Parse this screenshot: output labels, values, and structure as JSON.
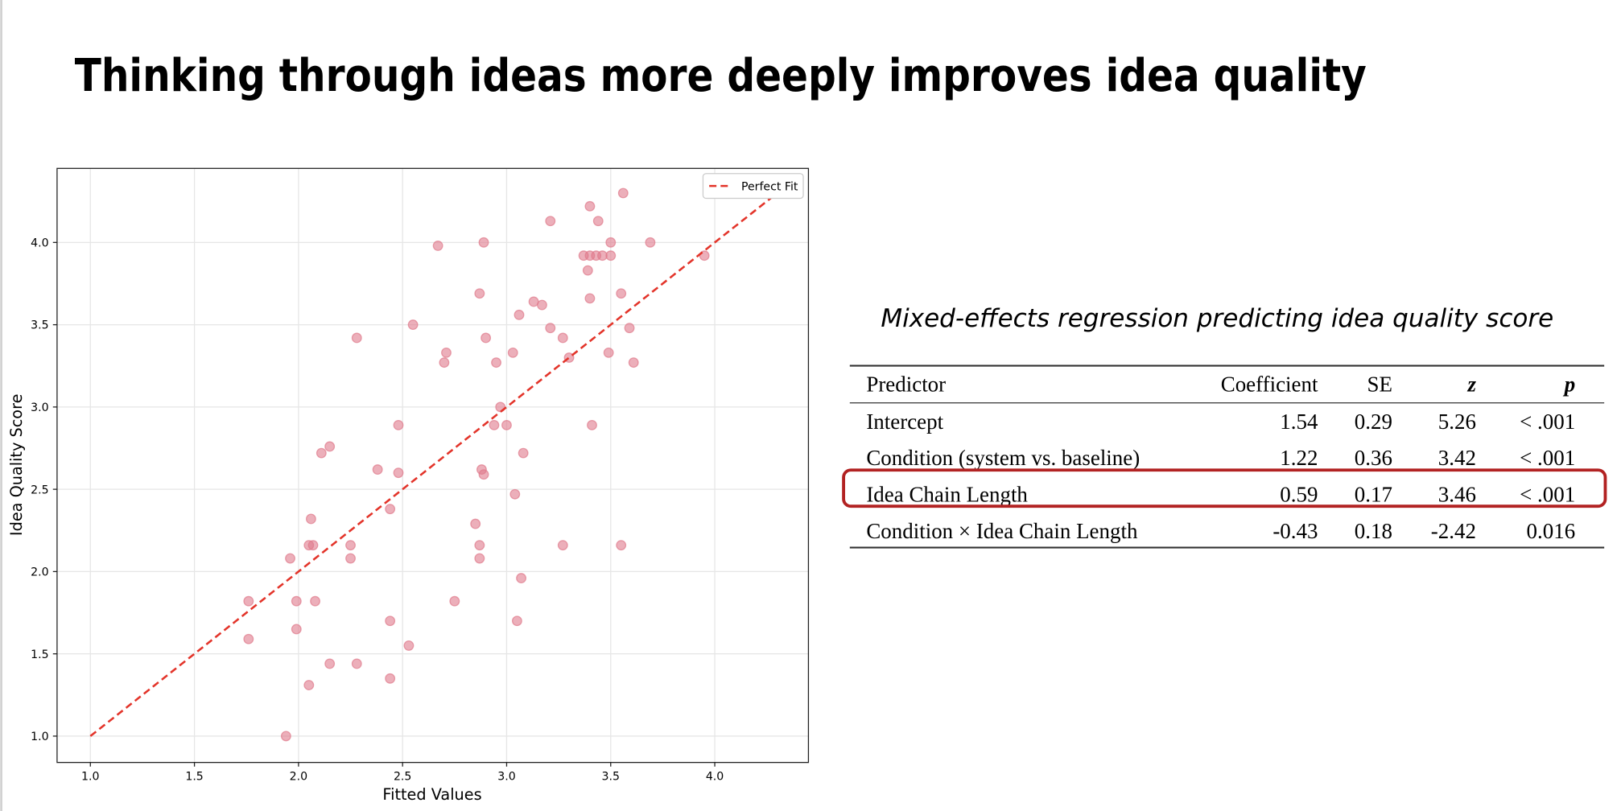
{
  "title": "Thinking through ideas more deeply improves idea quality",
  "chart_data": {
    "type": "scatter",
    "xlabel": "Fitted Values",
    "ylabel": "Idea Quality Score",
    "xlim": [
      0.84,
      4.45
    ],
    "ylim": [
      0.84,
      4.45
    ],
    "xticks": [
      {
        "value": 1,
        "label": "1.0"
      },
      1.5,
      {
        "value": 2,
        "label": "2.0"
      },
      2.5,
      {
        "value": 3,
        "label": "3.0"
      },
      3.5,
      {
        "value": 4,
        "label": "4.0"
      }
    ],
    "yticks": [
      {
        "value": 1,
        "label": "1.0"
      },
      1.5,
      {
        "value": 2,
        "label": "2.0"
      },
      2.5,
      {
        "value": 3,
        "label": "3.0"
      },
      3.5,
      {
        "value": 4,
        "label": "4.0"
      }
    ],
    "grid": true,
    "legend": "upper right",
    "series": [
      {
        "type": "scatter",
        "color": "#e07a8c",
        "x": [
          3.4,
          3.56,
          3.21,
          3.44,
          2.67,
          2.89,
          3.69,
          3.5,
          3.37,
          3.4,
          3.43,
          3.46,
          3.5,
          3.95,
          3.39,
          3.55,
          2.87,
          3.4,
          3.13,
          3.17,
          3.06,
          2.55,
          3.21,
          3.59,
          2.28,
          2.9,
          3.27,
          2.71,
          3.03,
          3.49,
          3.3,
          2.7,
          2.95,
          3.61,
          2.97,
          2.48,
          2.94,
          3.0,
          3.41,
          2.15,
          2.11,
          3.08,
          2.38,
          2.88,
          2.89,
          2.48,
          3.04,
          2.44,
          2.06,
          2.05,
          2.07,
          2.25,
          2.87,
          3.27,
          3.55,
          2.85,
          1.96,
          2.25,
          2.87,
          3.07,
          1.76,
          1.99,
          2.08,
          2.75,
          2.44,
          3.05,
          1.99,
          1.76,
          2.53,
          2.15,
          2.28,
          2.44,
          2.05,
          1.94
        ],
        "values": [
          4.22,
          4.3,
          4.13,
          4.13,
          3.98,
          4.0,
          4.0,
          4.0,
          3.92,
          3.92,
          3.92,
          3.92,
          3.92,
          3.92,
          3.83,
          3.69,
          3.69,
          3.66,
          3.64,
          3.62,
          3.56,
          3.5,
          3.48,
          3.48,
          3.42,
          3.42,
          3.42,
          3.33,
          3.33,
          3.33,
          3.3,
          3.27,
          3.27,
          3.27,
          3.0,
          2.89,
          2.89,
          2.89,
          2.89,
          2.76,
          2.72,
          2.72,
          2.62,
          2.62,
          2.59,
          2.6,
          2.47,
          2.38,
          2.32,
          2.16,
          2.16,
          2.16,
          2.16,
          2.16,
          2.16,
          2.29,
          2.08,
          2.08,
          2.08,
          1.96,
          1.82,
          1.82,
          1.82,
          1.82,
          1.7,
          1.7,
          1.65,
          1.59,
          1.55,
          1.44,
          1.44,
          1.35,
          1.31,
          1.0
        ]
      },
      {
        "type": "line",
        "name": "Perfect Fit",
        "color": "#e3342a",
        "dashed": true,
        "x": [
          1,
          4.3
        ],
        "values": [
          1,
          4.3
        ]
      }
    ]
  },
  "table": {
    "caption": "Mixed-effects regression predicting idea quality score",
    "header": [
      "Predictor",
      "Coefficient",
      "SE",
      "z",
      "p"
    ],
    "rows": [
      [
        "Intercept",
        "1.54",
        "0.29",
        "5.26",
        "< .001"
      ],
      [
        "Condition (system vs. baseline)",
        "1.22",
        "0.36",
        "3.42",
        "< .001"
      ],
      [
        "Idea Chain Length",
        "0.59",
        "0.17",
        "3.46",
        "< .001"
      ],
      [
        "Condition × Idea Chain Length",
        "-0.43",
        "0.18",
        "-2.42",
        "0.016"
      ]
    ]
  }
}
